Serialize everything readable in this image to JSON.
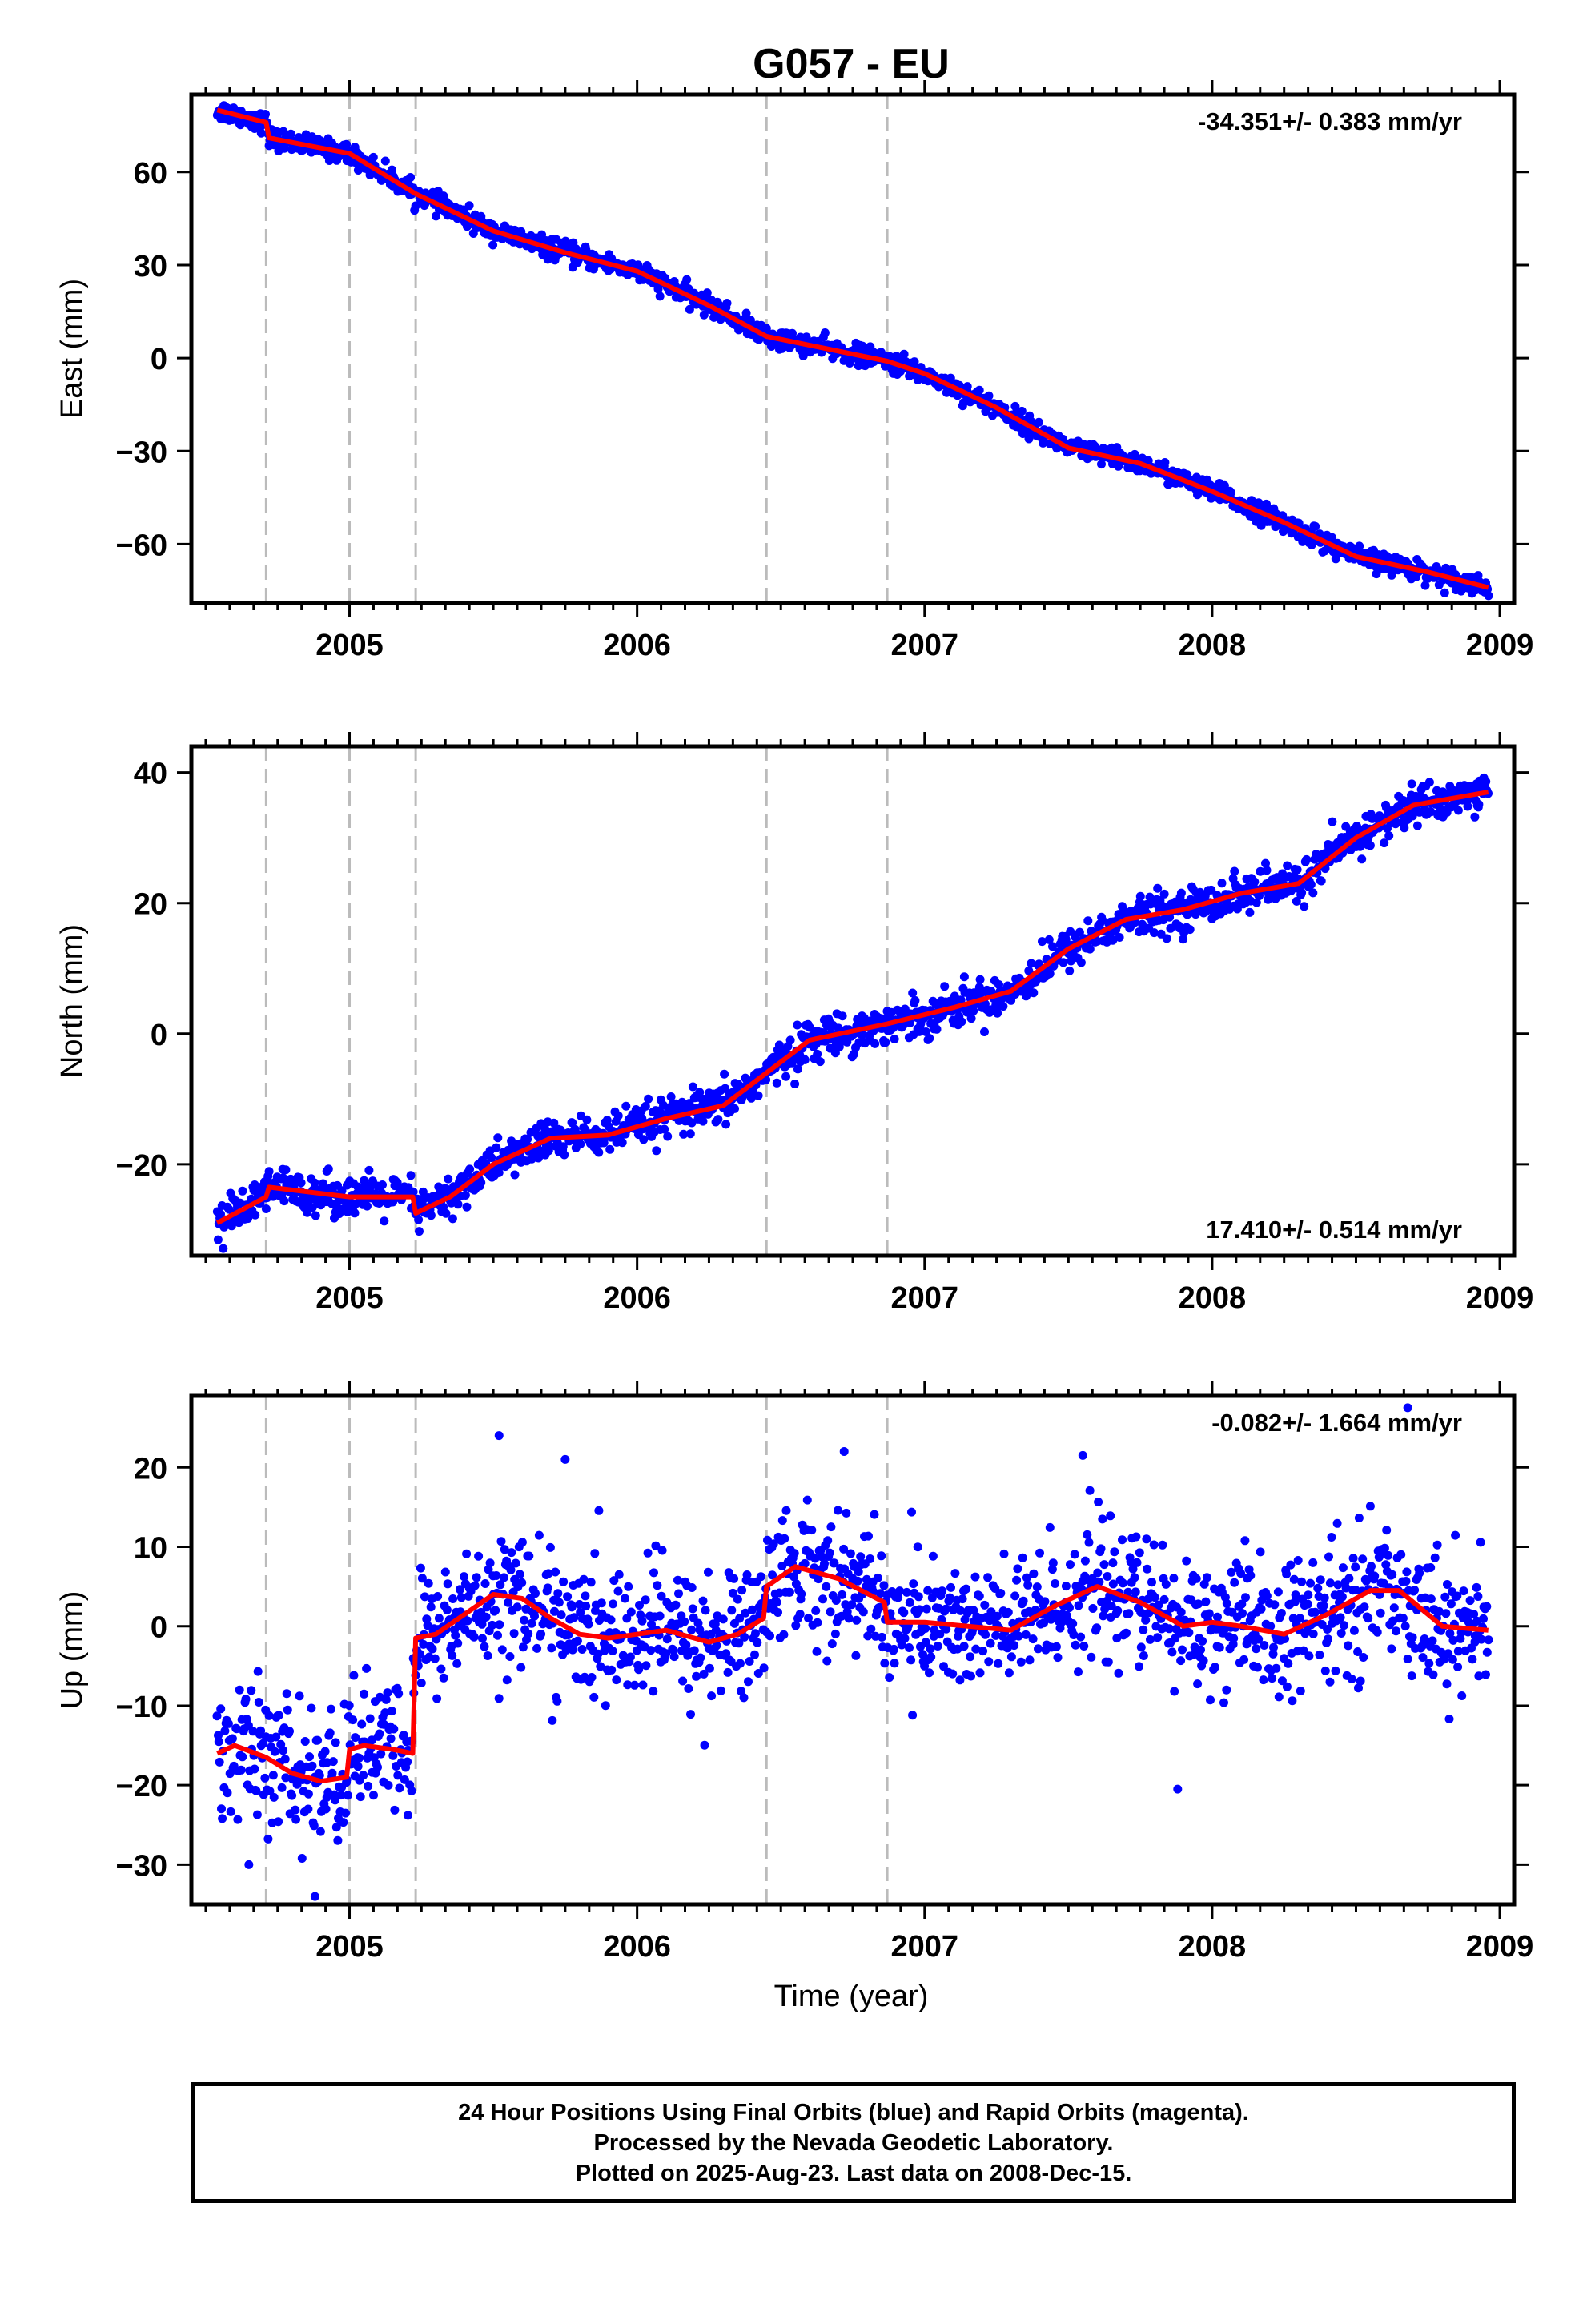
{
  "title": "G057 - EU",
  "xlabel": "Time (year)",
  "footer": {
    "line1": "24 Hour Positions Using Final Orbits (blue) and Rapid Orbits (magenta).",
    "line2": "Processed by the Nevada Geodetic Laboratory.",
    "line3": "Plotted on 2025-Aug-23. Last data on 2008-Dec-15."
  },
  "colors": {
    "points": "#0000ff",
    "model": "#ff0000",
    "breaks": "#bbbbbb",
    "axis": "#000000"
  },
  "chart_data": [
    {
      "type": "scatter",
      "ylabel": "East (mm)",
      "rate_label": "-34.351+/- 0.383 mm/yr",
      "rate_position": "top-right",
      "xlim": [
        2004.45,
        2009.05
      ],
      "ylim": [
        -79,
        85
      ],
      "yticks": [
        -60,
        -30,
        0,
        30,
        60
      ],
      "xticks": [
        2005,
        2006,
        2007,
        2008,
        2009
      ],
      "break_lines": [
        2004.71,
        2005.0,
        2005.23,
        2006.45,
        2006.87
      ],
      "model": {
        "x": [
          2004.54,
          2004.71,
          2004.72,
          2005.0,
          2005.23,
          2005.5,
          2005.75,
          2006.0,
          2006.25,
          2006.45,
          2006.87,
          2007.0,
          2007.25,
          2007.5,
          2007.75,
          2008.0,
          2008.25,
          2008.5,
          2008.75,
          2008.96
        ],
        "y": [
          80,
          76,
          71,
          66,
          53,
          41,
          34,
          28,
          17,
          7,
          -1,
          -5,
          -16,
          -29,
          -34,
          -43,
          -53,
          -64,
          -69,
          -74
        ]
      },
      "scatter_noise": 1.6,
      "outliers": []
    },
    {
      "type": "scatter",
      "ylabel": "North (mm)",
      "rate_label": "17.410+/- 0.514 mm/yr",
      "rate_position": "bottom-right",
      "xlim": [
        2004.45,
        2009.05
      ],
      "ylim": [
        -34,
        44
      ],
      "yticks": [
        -20,
        0,
        20,
        40
      ],
      "xticks": [
        2005,
        2006,
        2007,
        2008,
        2009
      ],
      "break_lines": [
        2004.71,
        2005.0,
        2005.23,
        2006.45,
        2006.87
      ],
      "model": {
        "x": [
          2004.54,
          2004.71,
          2004.72,
          2005.0,
          2005.22,
          2005.23,
          2005.35,
          2005.5,
          2005.7,
          2005.9,
          2006.1,
          2006.3,
          2006.45,
          2006.6,
          2006.87,
          2007.1,
          2007.3,
          2007.5,
          2007.7,
          2007.9,
          2008.1,
          2008.3,
          2008.5,
          2008.7,
          2008.96
        ],
        "y": [
          -29,
          -25,
          -23.5,
          -25,
          -25,
          -27.5,
          -25,
          -20,
          -16,
          -15.5,
          -13,
          -11,
          -6,
          -1,
          1.5,
          4,
          6.5,
          13,
          17.5,
          19,
          21.5,
          23,
          30,
          35,
          37
        ]
      },
      "scatter_noise": 1.5,
      "outliers": []
    },
    {
      "type": "scatter",
      "ylabel": "Up (mm)",
      "rate_label": "-0.082+/- 1.664 mm/yr",
      "rate_position": "top-right",
      "xlim": [
        2004.45,
        2009.05
      ],
      "ylim": [
        -35,
        29
      ],
      "yticks": [
        -30,
        -20,
        -10,
        0,
        10,
        20
      ],
      "xticks": [
        2005,
        2006,
        2007,
        2008,
        2009
      ],
      "break_lines": [
        2004.71,
        2005.0,
        2005.23,
        2006.45,
        2006.87
      ],
      "model": {
        "x": [
          2004.54,
          2004.6,
          2004.71,
          2004.8,
          2004.9,
          2004.99,
          2005.0,
          2005.05,
          2005.15,
          2005.22,
          2005.23,
          2005.3,
          2005.4,
          2005.5,
          2005.6,
          2005.7,
          2005.8,
          2005.9,
          2006.0,
          2006.1,
          2006.25,
          2006.35,
          2006.44,
          2006.45,
          2006.55,
          2006.7,
          2006.86,
          2006.87,
          2007.0,
          2007.15,
          2007.3,
          2007.45,
          2007.6,
          2007.75,
          2007.9,
          2008.0,
          2008.1,
          2008.25,
          2008.4,
          2008.55,
          2008.65,
          2008.8,
          2008.96
        ],
        "y": [
          -16,
          -15,
          -16.5,
          -18.5,
          -19.5,
          -19,
          -15.5,
          -15,
          -15.5,
          -16,
          -1.5,
          -1,
          1.5,
          4,
          3.5,
          1,
          -1,
          -1.5,
          -1,
          -0.5,
          -2,
          -1,
          1,
          5,
          7.5,
          6,
          3,
          0.5,
          0.5,
          0,
          -0.5,
          2.5,
          5,
          3,
          0,
          0.5,
          0,
          -1,
          1.5,
          4.5,
          4.5,
          0,
          -0.5
        ]
      },
      "scatter_noise": 4.2,
      "outliers": [
        [
          2005.52,
          24
        ],
        [
          2008.68,
          27.5
        ],
        [
          2004.65,
          -30
        ],
        [
          2004.88,
          -34
        ],
        [
          2007.88,
          -20.5
        ],
        [
          2005.75,
          21
        ],
        [
          2007.55,
          21.5
        ],
        [
          2006.72,
          22
        ]
      ]
    }
  ]
}
